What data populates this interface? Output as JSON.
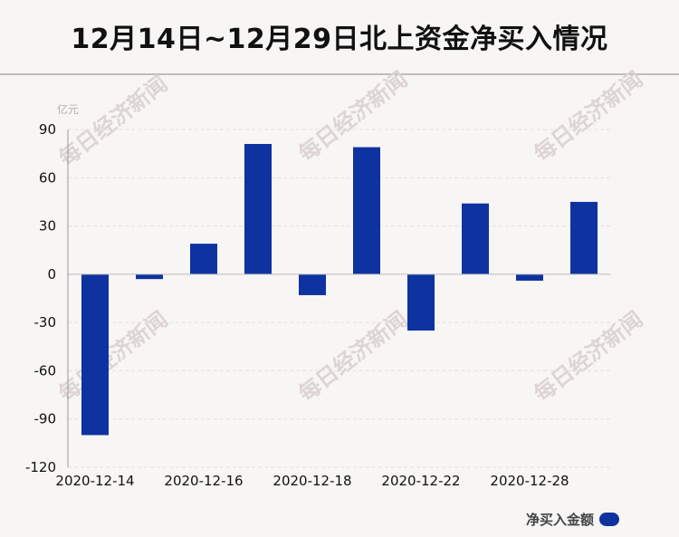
{
  "title": "12月14日~12月29日北上资金净买入情况",
  "watermark": "每日经济新闻",
  "colors": {
    "bar": "#0e33a0",
    "axis": "#999999",
    "grid": "#e6e0e0",
    "text": "#111111"
  },
  "chart_data": {
    "type": "bar",
    "unit_label": "亿元",
    "x_tick_labels": [
      "2020-12-14",
      "2020-12-16",
      "2020-12-18",
      "2020-12-22",
      "2020-12-28"
    ],
    "x_tick_indices": [
      0,
      2,
      4,
      6,
      8
    ],
    "values": [
      -100,
      -3,
      19,
      81,
      -13,
      79,
      -35,
      44,
      -4,
      45
    ],
    "ylim": [
      -120,
      90
    ],
    "yticks": [
      90,
      60,
      30,
      0,
      -30,
      -60,
      -90,
      -120
    ],
    "grid": true,
    "legend_position": "bottom-right",
    "series": [
      {
        "name": "净买入金额"
      }
    ]
  }
}
